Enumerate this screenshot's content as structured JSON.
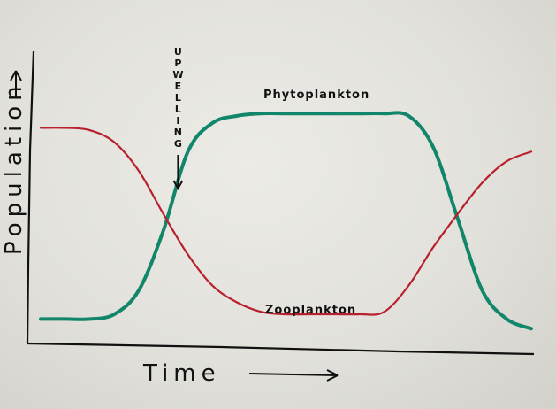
{
  "chart_data": {
    "type": "line",
    "xlabel": "Time",
    "ylabel": "Population",
    "grid": false,
    "legend": "none",
    "x": [
      0,
      5,
      10,
      15,
      20,
      25,
      30,
      35,
      40,
      45,
      50,
      55,
      60,
      65,
      70,
      75,
      80,
      85,
      90,
      95,
      100
    ],
    "series": [
      {
        "name": "Phytoplankton",
        "color": "#12866a",
        "values": [
          8,
          8,
          8,
          10,
          20,
          45,
          78,
          90,
          93,
          94,
          94,
          94,
          94,
          94,
          94,
          93,
          80,
          50,
          20,
          8,
          4
        ]
      },
      {
        "name": "Zooplankton",
        "color": "#b8202e",
        "values": [
          88,
          88,
          87,
          82,
          70,
          52,
          35,
          22,
          15,
          11,
          10,
          10,
          10,
          10,
          11,
          22,
          38,
          52,
          65,
          74,
          78
        ]
      }
    ],
    "annotation": {
      "text": "UPWELLING",
      "x": 28
    }
  }
}
